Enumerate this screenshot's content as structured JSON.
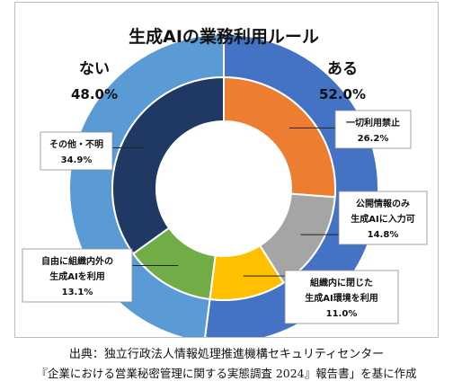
{
  "chart_data": {
    "type": "pie",
    "title": "生成AIの業務利用ルール",
    "outer_series": [
      {
        "label": "ある",
        "pct_label": "52.0%",
        "value": 52.0,
        "color": "#4472c4"
      },
      {
        "label": "ない",
        "pct_label": "48.0%",
        "value": 48.0,
        "color": "#5b9bd5"
      }
    ],
    "inner_series": [
      {
        "lines": [
          "一切利用禁止"
        ],
        "pct_label": "26.2%",
        "value": 26.2,
        "color": "#ed7d31"
      },
      {
        "lines": [
          "公開情報のみ",
          "生成AIに入力可"
        ],
        "pct_label": "14.8%",
        "value": 14.8,
        "color": "#a5a5a5"
      },
      {
        "lines": [
          "組織内に閉じた",
          "生成AI環境を利用"
        ],
        "pct_label": "11.0%",
        "value": 11.0,
        "color": "#ffc000"
      },
      {
        "lines": [
          "自由に組織内外の",
          "生成AIを利用"
        ],
        "pct_label": "13.1%",
        "value": 13.1,
        "color": "#70ad47"
      },
      {
        "lines": [
          "その他・不明"
        ],
        "pct_label": "34.9%",
        "value": 34.9,
        "color": "#203864"
      }
    ]
  },
  "source": {
    "line1": "出典：独立行政法人情報処理推進機構セキュリティセンター",
    "line2": "『企業における営業秘密管理に関する実態調査 2024』報告書」を基に作成"
  }
}
